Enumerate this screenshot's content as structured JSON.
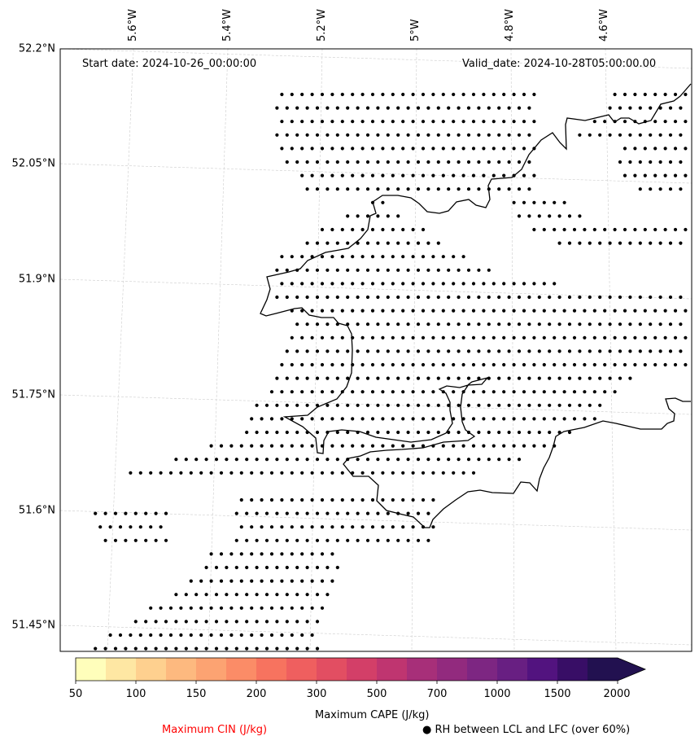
{
  "map": {
    "start_date": "Start date: 2024-10-26_00:00:00",
    "valid_date": "Valid_date: 2024-10-28T05:00:00.00",
    "lat_labels": [
      "52.2°N",
      "52.05°N",
      "51.9°N",
      "51.75°N",
      "51.6°N",
      "51.45°N"
    ],
    "lon_labels": [
      "5.6°W",
      "5.4°W",
      "5.2°W",
      "5°W",
      "4.8°W",
      "4.6°W"
    ]
  },
  "colorbar": {
    "title": "Maximum CAPE (J/kg)",
    "tick_labels": [
      "50",
      "100",
      "150",
      "200",
      "300",
      "500",
      "700",
      "1000",
      "1500",
      "2000"
    ],
    "colors": [
      "#fffebb",
      "#fee7a3",
      "#fed08f",
      "#fdb97f",
      "#fca372",
      "#fb8c67",
      "#f7735f",
      "#ef5f5f",
      "#e24e62",
      "#d33f68",
      "#bf3570",
      "#a72f79",
      "#922a7e",
      "#7d2682",
      "#681f82",
      "#52137f",
      "#380e66",
      "#221150"
    ]
  },
  "legend": {
    "cin_label": "Maximum CIN (J/kg)",
    "cin_color": "#ff0000",
    "rh_marker": "●",
    "rh_label": "RH between LCL and LFC (over 60%)"
  }
}
